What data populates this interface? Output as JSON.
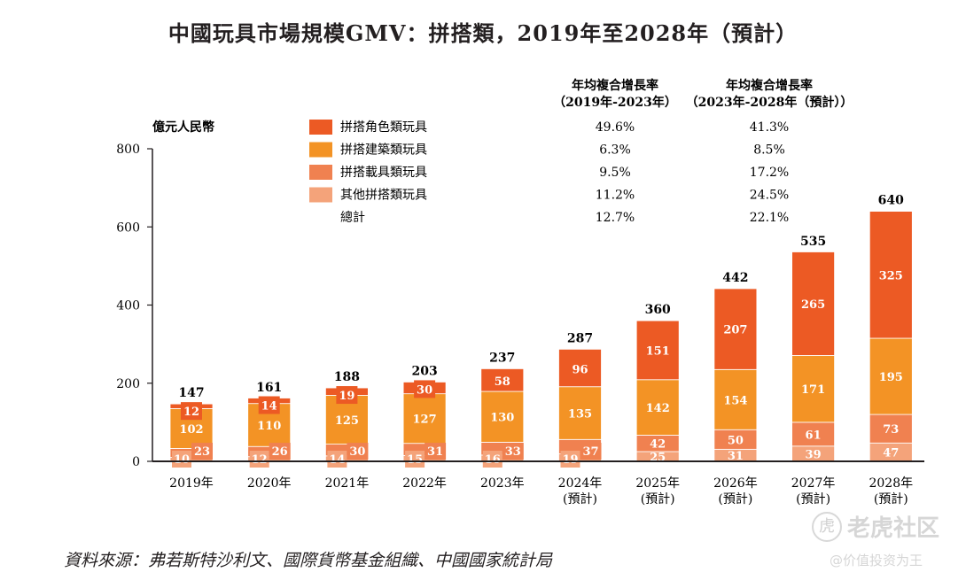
{
  "title": "中國玩具市場規模GMV：拼搭類，2019年至2028年（預計）",
  "source": "資料來源：弗若斯特沙利文、國際貨幣基金組織、中國國家統計局",
  "watermark": {
    "logo": "虎",
    "brand": "老虎社区",
    "tag": "@价值投资为王"
  },
  "cagr_table": {
    "headers": [
      {
        "line1": "年均複合增長率",
        "line2": "（2019年-2023年）"
      },
      {
        "line1": "年均複合增長率",
        "line2": "（2023年-2028年（預計））"
      }
    ],
    "rows": [
      {
        "label": "拼搭角色類玩具",
        "v1": "49.6%",
        "v2": "41.3%",
        "color": "#ec5a24"
      },
      {
        "label": "拼搭建築類玩具",
        "v1": "6.3%",
        "v2": "8.5%",
        "color": "#f39325"
      },
      {
        "label": "拼搭載具類玩具",
        "v1": "9.5%",
        "v2": "17.2%",
        "color": "#f08150"
      },
      {
        "label": "其他拼搭類玩具",
        "v1": "11.2%",
        "v2": "24.5%",
        "color": "#f4a37a"
      },
      {
        "label": "總計",
        "v1": "12.7%",
        "v2": "22.1%",
        "color": null
      }
    ]
  },
  "chart_data": {
    "type": "bar",
    "stacked": true,
    "ylabel": "億元人民幣",
    "ylim": [
      0,
      800
    ],
    "yticks": [
      "0",
      "200",
      "400",
      "600",
      "800"
    ],
    "grid": false,
    "categories": [
      "2019年",
      "2020年",
      "2021年",
      "2022年",
      "2023年",
      "2024年",
      "2025年",
      "2026年",
      "2027年",
      "2028年"
    ],
    "category_notes": [
      "",
      "",
      "",
      "",
      "",
      "(預計)",
      "(預計)",
      "(預計)",
      "(預計)",
      "(預計)"
    ],
    "series": [
      {
        "name": "其他拼搭類玩具",
        "color": "#f4a37a",
        "values": [
          10,
          12,
          14,
          15,
          16,
          19,
          25,
          31,
          39,
          47
        ]
      },
      {
        "name": "拼搭載具類玩具",
        "color": "#f08150",
        "values": [
          23,
          26,
          30,
          31,
          33,
          37,
          42,
          50,
          61,
          73
        ]
      },
      {
        "name": "拼搭建築類玩具",
        "color": "#f39325",
        "values": [
          102,
          110,
          125,
          127,
          130,
          135,
          142,
          154,
          171,
          195
        ]
      },
      {
        "name": "拼搭角色類玩具",
        "color": "#ec5a24",
        "values": [
          12,
          14,
          19,
          30,
          58,
          96,
          151,
          207,
          265,
          325
        ]
      }
    ],
    "totals": [
      147,
      161,
      188,
      203,
      237,
      287,
      360,
      442,
      535,
      640
    ]
  }
}
